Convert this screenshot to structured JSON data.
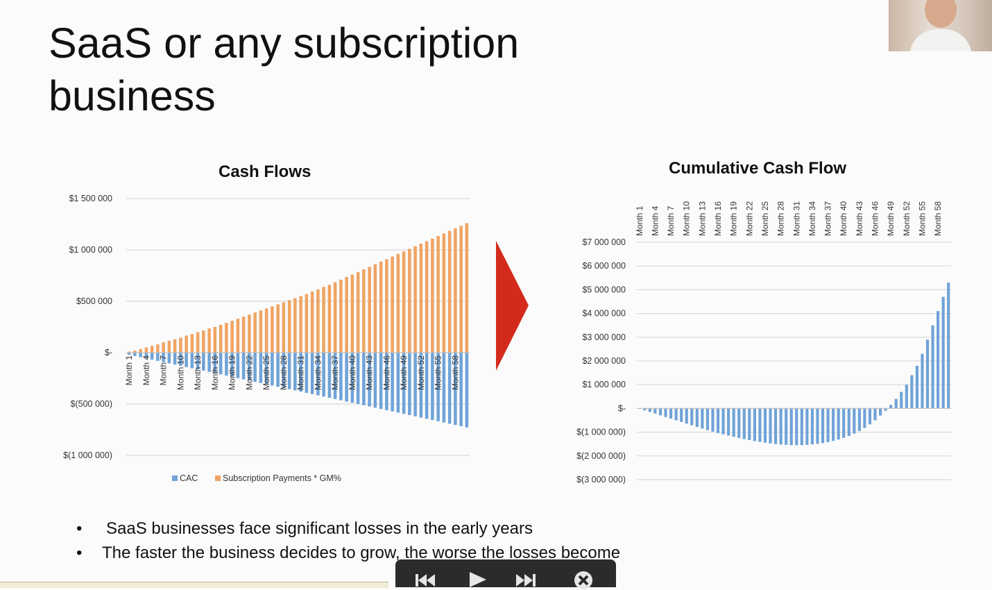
{
  "slide": {
    "title_line1": "SaaS or any subscription",
    "title_line2": "business",
    "bullets": [
      "SaaS businesses face significant losses in the early years",
      "The faster the business decides to grow, the worse the losses become"
    ],
    "bullet_symbol": "•"
  },
  "player": {
    "prev_icon": "skip-back-icon",
    "play_icon": "play-icon",
    "next_icon": "skip-forward-icon",
    "close_icon": "close-icon"
  },
  "colors": {
    "cac": "#6fa3d8",
    "subscription": "#f0a463",
    "arrow": "#d42a1c"
  },
  "chart_data": [
    {
      "type": "bar",
      "title": "Cash Flows",
      "stacked": true,
      "x_labels_every": 3,
      "x_label_prefix": "Month",
      "categories": [
        "Month 1",
        "Month 2",
        "Month 3",
        "Month 4",
        "Month 5",
        "Month 6",
        "Month 7",
        "Month 8",
        "Month 9",
        "Month 10",
        "Month 11",
        "Month 12",
        "Month 13",
        "Month 14",
        "Month 15",
        "Month 16",
        "Month 17",
        "Month 18",
        "Month 19",
        "Month 20",
        "Month 21",
        "Month 22",
        "Month 23",
        "Month 24",
        "Month 25",
        "Month 26",
        "Month 27",
        "Month 28",
        "Month 29",
        "Month 30",
        "Month 31",
        "Month 32",
        "Month 33",
        "Month 34",
        "Month 35",
        "Month 36",
        "Month 37",
        "Month 38",
        "Month 39",
        "Month 40",
        "Month 41",
        "Month 42",
        "Month 43",
        "Month 44",
        "Month 45",
        "Month 46",
        "Month 47",
        "Month 48",
        "Month 49",
        "Month 50",
        "Month 51",
        "Month 52",
        "Month 53",
        "Month 54",
        "Month 55",
        "Month 56",
        "Month 57",
        "Month 58",
        "Month 59",
        "Month 60"
      ],
      "series": [
        {
          "name": "CAC",
          "values": [
            -20000,
            -32000,
            -44000,
            -56000,
            -68000,
            -80000,
            -92000,
            -104000,
            -116000,
            -128000,
            -140000,
            -152000,
            -164000,
            -176000,
            -188000,
            -200000,
            -212000,
            -224000,
            -236000,
            -248000,
            -260000,
            -272000,
            -284000,
            -296000,
            -308000,
            -320000,
            -332000,
            -344000,
            -356000,
            -368000,
            -380000,
            -392000,
            -404000,
            -416000,
            -428000,
            -440000,
            -452000,
            -464000,
            -476000,
            -488000,
            -500000,
            -512000,
            -524000,
            -536000,
            -548000,
            -560000,
            -572000,
            -584000,
            -596000,
            -608000,
            -620000,
            -632000,
            -644000,
            -656000,
            -668000,
            -680000,
            -692000,
            -704000,
            -716000,
            -728000
          ]
        },
        {
          "name": "Subscription Payments * GM%",
          "values": [
            10000,
            20000,
            35000,
            50000,
            65000,
            80000,
            100000,
            115000,
            130000,
            145000,
            165000,
            180000,
            200000,
            215000,
            235000,
            250000,
            270000,
            290000,
            310000,
            330000,
            350000,
            370000,
            390000,
            410000,
            430000,
            450000,
            470000,
            490000,
            510000,
            530000,
            550000,
            570000,
            595000,
            615000,
            640000,
            660000,
            685000,
            710000,
            735000,
            760000,
            785000,
            810000,
            835000,
            860000,
            885000,
            910000,
            935000,
            960000,
            985000,
            1010000,
            1035000,
            1060000,
            1085000,
            1110000,
            1135000,
            1160000,
            1185000,
            1210000,
            1235000,
            1260000
          ]
        }
      ],
      "ylim": [
        -1000000,
        1500000
      ],
      "y_ticks": [
        "$1 500 000",
        "$1 000 000",
        "$500 000",
        "$-",
        "$(500 000)",
        "$(1 000 000)"
      ],
      "grid": true,
      "legend_position": "bottom"
    },
    {
      "type": "bar",
      "title": "Cumulative Cash Flow",
      "x_labels_every": 3,
      "x_label_prefix": "Month",
      "x_axis_position": "top",
      "categories": [
        "Month 1",
        "Month 2",
        "Month 3",
        "Month 4",
        "Month 5",
        "Month 6",
        "Month 7",
        "Month 8",
        "Month 9",
        "Month 10",
        "Month 11",
        "Month 12",
        "Month 13",
        "Month 14",
        "Month 15",
        "Month 16",
        "Month 17",
        "Month 18",
        "Month 19",
        "Month 20",
        "Month 21",
        "Month 22",
        "Month 23",
        "Month 24",
        "Month 25",
        "Month 26",
        "Month 27",
        "Month 28",
        "Month 29",
        "Month 30",
        "Month 31",
        "Month 32",
        "Month 33",
        "Month 34",
        "Month 35",
        "Month 36",
        "Month 37",
        "Month 38",
        "Month 39",
        "Month 40",
        "Month 41",
        "Month 42",
        "Month 43",
        "Month 44",
        "Month 45",
        "Month 46",
        "Month 47",
        "Month 48",
        "Month 49",
        "Month 50",
        "Month 51",
        "Month 52",
        "Month 53",
        "Month 54",
        "Month 55",
        "Month 56",
        "Month 57",
        "Month 58",
        "Month 59",
        "Month 60"
      ],
      "series": [
        {
          "values": [
            -10000,
            -80000,
            -150000,
            -220000,
            -290000,
            -360000,
            -430000,
            -500000,
            -570000,
            -640000,
            -710000,
            -780000,
            -850000,
            -915000,
            -975000,
            -1035000,
            -1090000,
            -1145000,
            -1195000,
            -1245000,
            -1290000,
            -1335000,
            -1375000,
            -1410000,
            -1445000,
            -1475000,
            -1500000,
            -1520000,
            -1535000,
            -1545000,
            -1550000,
            -1545000,
            -1535000,
            -1515000,
            -1490000,
            -1460000,
            -1420000,
            -1370000,
            -1310000,
            -1240000,
            -1160000,
            -1060000,
            -950000,
            -820000,
            -670000,
            -500000,
            -300000,
            -100000,
            150000,
            400000,
            700000,
            1000000,
            1400000,
            1800000,
            2300000,
            2900000,
            3500000,
            4100000,
            4700000,
            5300000
          ]
        }
      ],
      "ylim": [
        -3000000,
        7000000
      ],
      "y_ticks": [
        "$7 000 000",
        "$6 000 000",
        "$5 000 000",
        "$4 000 000",
        "$3 000 000",
        "$2 000 000",
        "$1 000 000",
        "$-",
        "$(1 000 000)",
        "$(2 000 000)",
        "$(3 000 000)"
      ],
      "grid": true
    }
  ]
}
